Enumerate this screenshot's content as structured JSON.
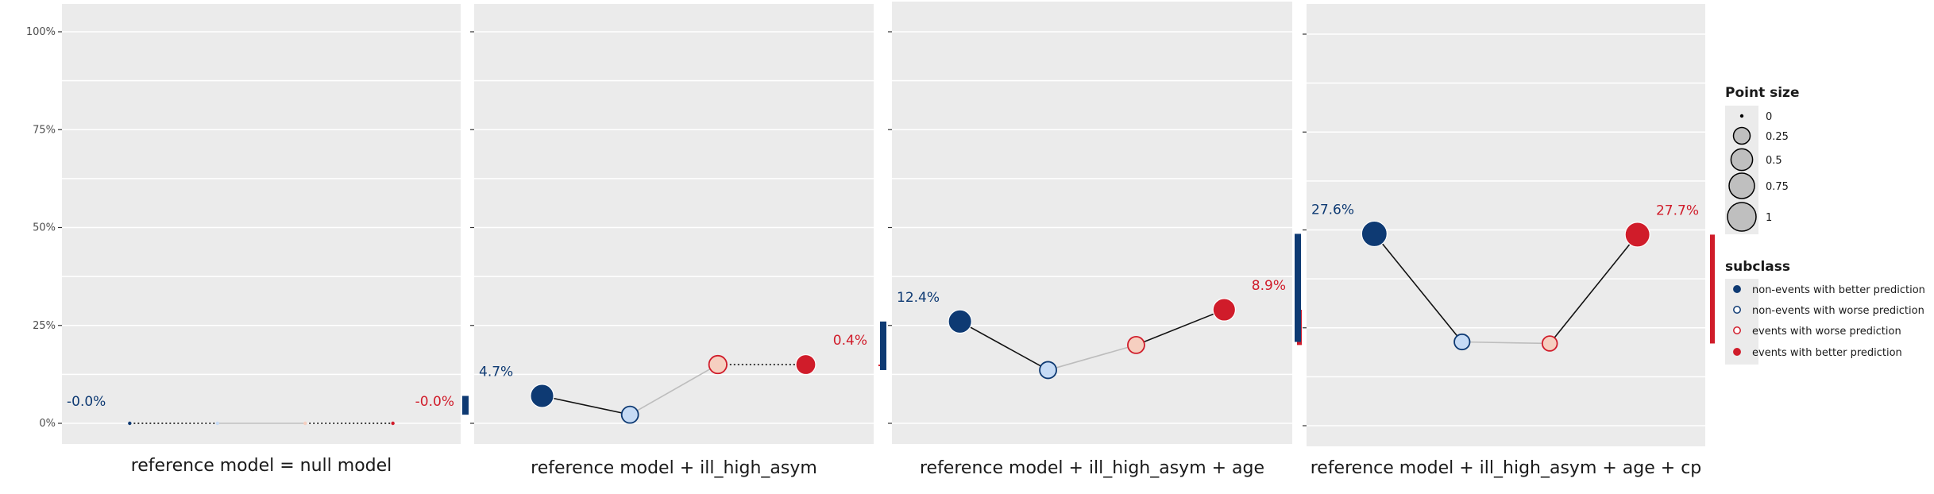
{
  "colors": {
    "navy": "#0e3a73",
    "light_blue": "#c6dbf5",
    "light_red": "#f6cfc0",
    "red": "#d01c2a",
    "panel_bg": "#ebebeb"
  },
  "chart_data": {
    "type": "line",
    "y_tick_labels": [
      "0%",
      "25%",
      "50%",
      "75%",
      "100%"
    ],
    "ylim": [
      0,
      1
    ],
    "grid": true,
    "categories": [
      "non-events with better prediction",
      "non-events with worse prediction",
      "events with worse prediction",
      "events with better prediction"
    ],
    "panels": [
      {
        "title": "reference model = null model",
        "values": [
          0.0,
          0.0,
          0.0,
          0.0
        ],
        "sizes": [
          0.0,
          0.0,
          0.0,
          0.0
        ],
        "left_label": "-0.0%",
        "right_label": "-0.0%",
        "left_net": 0.0,
        "right_net": 0.0
      },
      {
        "title": "reference model + ill_high_asym",
        "values": [
          0.07,
          0.022,
          0.15,
          0.15
        ],
        "sizes": [
          0.6,
          0.25,
          0.3,
          0.4
        ],
        "left_label": "4.7%",
        "right_label": "0.4%",
        "left_net": 0.047,
        "right_net": 0.004
      },
      {
        "title": "reference model + ill_high_asym + age",
        "values": [
          0.26,
          0.136,
          0.2,
          0.29
        ],
        "sizes": [
          0.6,
          0.25,
          0.25,
          0.55
        ],
        "left_label": "12.4%",
        "right_label": "8.9%",
        "left_net": 0.124,
        "right_net": 0.089
      },
      {
        "title": "reference model + ill_high_asym + age + cp",
        "values": [
          0.49,
          0.214,
          0.21,
          0.488
        ],
        "sizes": [
          0.75,
          0.2,
          0.18,
          0.7
        ],
        "left_label": "27.6%",
        "right_label": "27.7%",
        "left_net": 0.276,
        "right_net": 0.277
      }
    ],
    "legend": {
      "position": "right",
      "size_title": "Point size",
      "size_values": [
        0,
        0.25,
        0.5,
        0.75,
        1
      ],
      "size_labels": [
        "0",
        "0.25",
        "0.5",
        "0.75",
        "1"
      ],
      "subclass_title": "subclass",
      "subclass_labels": [
        "non-events with better prediction",
        "non-events with worse prediction",
        "events with worse prediction",
        "events with better prediction"
      ]
    }
  }
}
